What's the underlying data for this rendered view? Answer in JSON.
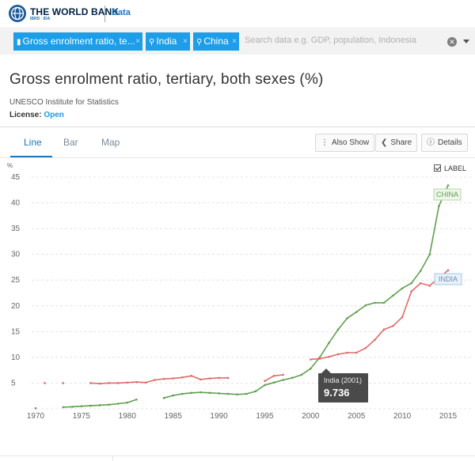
{
  "header": {
    "brand": "THE WORLD BANK",
    "brand_sub": "IBRD · IDA",
    "data_link": "Data"
  },
  "filters": {
    "chips": [
      {
        "label": "Gross enrolment ratio, te...",
        "icon": "bar-chart-icon"
      },
      {
        "label": "India",
        "icon": "location-pin-icon"
      },
      {
        "label": "China",
        "icon": "location-pin-icon"
      }
    ],
    "remove_glyph": "×",
    "search_placeholder": "Search data e.g. GDP, population, Indonesia",
    "clear_glyph": "✕"
  },
  "page": {
    "title": "Gross enrolment ratio, tertiary, both sexes (%)",
    "source": "UNESCO Institute for Statistics",
    "license_label": "License:",
    "license_value": "Open"
  },
  "tabs": [
    {
      "label": "Line",
      "active": true
    },
    {
      "label": "Bar",
      "active": false
    },
    {
      "label": "Map",
      "active": false
    }
  ],
  "toolbar": {
    "also_show": "Also Show",
    "share": "Share",
    "details": "Details"
  },
  "label_toggle": {
    "label": "LABEL",
    "checked": true
  },
  "tooltip": {
    "title": "India (2001)",
    "value": "9.736"
  },
  "colors": {
    "china": "#5e9f4f",
    "india": "#e06a6a",
    "accent": "#1e9ee8",
    "link": "#1a78c2"
  },
  "chart_data": {
    "type": "line",
    "title": "",
    "xlabel": "",
    "ylabel": "%",
    "xlim": [
      1970,
      2016
    ],
    "ylim": [
      0,
      45
    ],
    "x_ticks": [
      "1970",
      "1975",
      "1980",
      "1985",
      "1990",
      "1995",
      "2000",
      "2005",
      "2010",
      "2015"
    ],
    "y_ticks": [
      "5",
      "10",
      "15",
      "20",
      "25",
      "30",
      "35",
      "40",
      "45"
    ],
    "grid": true,
    "legend": "inline-labels",
    "series": [
      {
        "name": "CHINA",
        "color": "#5e9f4f",
        "points": [
          [
            1970,
            0.1
          ],
          [
            1973,
            0.3
          ],
          [
            1974,
            0.4
          ],
          [
            1975,
            0.5
          ],
          [
            1976,
            0.6
          ],
          [
            1977,
            0.7
          ],
          [
            1978,
            0.8
          ],
          [
            1979,
            1.0
          ],
          [
            1980,
            1.2
          ],
          [
            1981,
            1.8
          ],
          [
            1984,
            2.1
          ],
          [
            1985,
            2.6
          ],
          [
            1986,
            2.9
          ],
          [
            1987,
            3.1
          ],
          [
            1988,
            3.2
          ],
          [
            1989,
            3.1
          ],
          [
            1990,
            3.0
          ],
          [
            1991,
            2.9
          ],
          [
            1992,
            2.8
          ],
          [
            1993,
            2.9
          ],
          [
            1994,
            3.4
          ],
          [
            1995,
            4.6
          ],
          [
            1996,
            5.1
          ],
          [
            1997,
            5.6
          ],
          [
            1998,
            6.0
          ],
          [
            1999,
            6.6
          ],
          [
            2000,
            7.8
          ],
          [
            2001,
            10.0
          ],
          [
            2002,
            12.8
          ],
          [
            2003,
            15.4
          ],
          [
            2004,
            17.6
          ],
          [
            2005,
            18.8
          ],
          [
            2006,
            20.1
          ],
          [
            2007,
            20.6
          ],
          [
            2008,
            20.6
          ],
          [
            2009,
            22.0
          ],
          [
            2010,
            23.4
          ],
          [
            2011,
            24.4
          ],
          [
            2012,
            26.8
          ],
          [
            2013,
            30.0
          ],
          [
            2014,
            39.4
          ],
          [
            2015,
            43.4
          ]
        ]
      },
      {
        "name": "INDIA",
        "color": "#e06a6a",
        "points": [
          [
            1971,
            5.0
          ],
          [
            1973,
            5.0
          ],
          [
            1976,
            5.0
          ],
          [
            1977,
            4.9
          ],
          [
            1978,
            5.0
          ],
          [
            1979,
            5.0
          ],
          [
            1980,
            5.1
          ],
          [
            1981,
            5.2
          ],
          [
            1982,
            5.1
          ],
          [
            1983,
            5.6
          ],
          [
            1984,
            5.8
          ],
          [
            1985,
            5.9
          ],
          [
            1986,
            6.1
          ],
          [
            1987,
            6.4
          ],
          [
            1988,
            5.7
          ],
          [
            1989,
            5.9
          ],
          [
            1990,
            6.0
          ],
          [
            1991,
            6.0
          ],
          [
            1995,
            5.4
          ],
          [
            1996,
            6.4
          ],
          [
            1997,
            6.6
          ],
          [
            2000,
            9.6
          ],
          [
            2001,
            9.736
          ],
          [
            2002,
            10.1
          ],
          [
            2003,
            10.6
          ],
          [
            2004,
            10.9
          ],
          [
            2005,
            10.9
          ],
          [
            2006,
            11.8
          ],
          [
            2007,
            13.4
          ],
          [
            2008,
            15.4
          ],
          [
            2009,
            16.1
          ],
          [
            2010,
            17.8
          ],
          [
            2011,
            22.8
          ],
          [
            2012,
            24.4
          ],
          [
            2013,
            23.9
          ],
          [
            2014,
            25.5
          ],
          [
            2015,
            26.9
          ]
        ]
      }
    ]
  }
}
